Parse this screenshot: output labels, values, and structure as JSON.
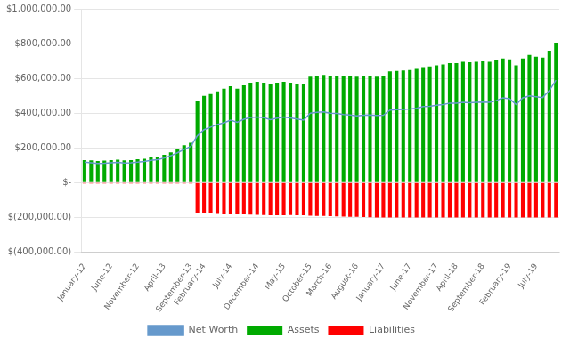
{
  "chart_data": {
    "type": "bar",
    "categories": [
      "January-12",
      null,
      null,
      null,
      "June-12",
      null,
      null,
      null,
      "November-12",
      null,
      null,
      null,
      "April-13",
      null,
      null,
      null,
      "September-13",
      null,
      "February-14",
      null,
      null,
      null,
      "July-14",
      null,
      null,
      null,
      "December-14",
      null,
      null,
      null,
      "May-15",
      null,
      null,
      null,
      "October-15",
      null,
      null,
      "March-16",
      null,
      null,
      null,
      "August-16",
      null,
      null,
      null,
      "January-17",
      null,
      null,
      null,
      "June-17",
      null,
      null,
      null,
      "November-17",
      null,
      null,
      "April-18",
      null,
      null,
      null,
      "September-18",
      null,
      null,
      null,
      "February-19",
      null,
      null,
      null,
      "July-19",
      null,
      null,
      null
    ],
    "series": [
      {
        "name": "Assets",
        "type": "bar",
        "color": "#00AA00",
        "values": [
          130000,
          128000,
          125000,
          127000,
          130000,
          132000,
          128000,
          130000,
          135000,
          138000,
          145000,
          150000,
          160000,
          175000,
          195000,
          215000,
          230000,
          470000,
          500000,
          510000,
          525000,
          540000,
          555000,
          540000,
          560000,
          575000,
          580000,
          575000,
          565000,
          575000,
          580000,
          575000,
          570000,
          565000,
          610000,
          615000,
          620000,
          615000,
          615000,
          612000,
          612000,
          610000,
          612000,
          613000,
          610000,
          612000,
          640000,
          643000,
          645000,
          648000,
          655000,
          665000,
          668000,
          675000,
          680000,
          688000,
          688000,
          695000,
          693000,
          695000,
          698000,
          695000,
          705000,
          715000,
          710000,
          675000,
          715000,
          735000,
          725000,
          720000,
          760000,
          805000
        ]
      },
      {
        "name": "Liabilities",
        "type": "bar",
        "color": "#FF0000",
        "values": [
          -5000,
          -5000,
          -5000,
          -5000,
          -5000,
          -5000,
          -5000,
          -5000,
          -5000,
          -5000,
          -5000,
          -5000,
          -5000,
          -5000,
          -5000,
          -5000,
          -5000,
          -175000,
          -178000,
          -178000,
          -180000,
          -182000,
          -183000,
          -182000,
          -183000,
          -184000,
          -185000,
          -186000,
          -187000,
          -187000,
          -187000,
          -186000,
          -187000,
          -188000,
          -190000,
          -191000,
          -192000,
          -193000,
          -194000,
          -195000,
          -196000,
          -197000,
          -198000,
          -199000,
          -200000,
          -200000,
          -200000,
          -200000,
          -200000,
          -200000,
          -200000,
          -200000,
          -200000,
          -200000,
          -200000,
          -200000,
          -200000,
          -200000,
          -200000,
          -200000,
          -200000,
          -200000,
          -200000,
          -200000,
          -200000,
          -200000,
          -200000,
          -200000,
          -200000,
          -200000,
          -200000,
          -200000
        ]
      },
      {
        "name": "Net Worth",
        "type": "line",
        "color": "#6699CC",
        "values": [
          118000,
          115000,
          110000,
          112000,
          115000,
          117000,
          113000,
          115000,
          118000,
          122000,
          128000,
          132000,
          142000,
          155000,
          172000,
          192000,
          208000,
          270000,
          305000,
          320000,
          335000,
          345000,
          360000,
          348000,
          365000,
          375000,
          378000,
          374000,
          363000,
          372000,
          378000,
          373000,
          367000,
          360000,
          400000,
          405000,
          408000,
          400000,
          398000,
          392000,
          390000,
          385000,
          388000,
          390000,
          387000,
          388000,
          418000,
          420000,
          422000,
          424000,
          428000,
          438000,
          440000,
          446000,
          450000,
          458000,
          458000,
          462000,
          460000,
          463000,
          464000,
          462000,
          472000,
          488000,
          483000,
          450000,
          488000,
          500000,
          495000,
          490000,
          530000,
          590000
        ]
      }
    ],
    "ylim": [
      -400000,
      1000000
    ],
    "yticks": [
      {
        "value": -400000,
        "label": "$(400,000.00)"
      },
      {
        "value": -200000,
        "label": "$(200,000.00)"
      },
      {
        "value": 0,
        "label": "$-"
      },
      {
        "value": 200000,
        "label": "$200,000.00"
      },
      {
        "value": 400000,
        "label": "$400,000.00"
      },
      {
        "value": 600000,
        "label": "$600,000.00"
      },
      {
        "value": 800000,
        "label": "$800,000.00"
      },
      {
        "value": 1000000,
        "label": "$1,000,000.00"
      }
    ],
    "grid": true,
    "legend": "bottom"
  }
}
